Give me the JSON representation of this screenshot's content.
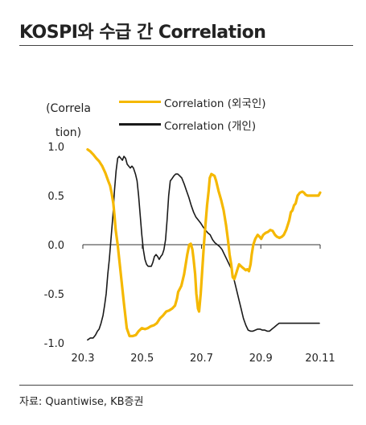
{
  "title": "KOSPI와 수급 간 Correlation",
  "source": "자료: Quantiwise, KB증권",
  "colors": {
    "foreign": "#F5B800",
    "individual": "#1a1a1a",
    "axis": "#333333"
  },
  "chart_data": {
    "type": "line",
    "title": "KOSPI와 수급 간 Correlation",
    "ylabel_lines": [
      "(Correla",
      "tion)"
    ],
    "xlabel": "",
    "ylim": [
      -1.0,
      1.0
    ],
    "xlim": [
      20.25,
      20.85
    ],
    "y_ticks": [
      "1.0",
      "0.5",
      "0.0",
      "-0.5",
      "-1.0"
    ],
    "y_tick_values": [
      1.0,
      0.5,
      0.0,
      -0.5,
      -1.0
    ],
    "x_ticks": [
      "20.3",
      "20.5",
      "20.7",
      "20.9",
      "20.11"
    ],
    "x_tick_values": [
      20.25,
      20.4,
      20.55,
      20.7,
      20.85
    ],
    "grid": false,
    "legend": "top",
    "series": [
      {
        "name": "Correlation (외국인)",
        "color": "#F5B800",
        "x": [
          20.262,
          20.269,
          20.276,
          20.284,
          20.291,
          20.299,
          20.307,
          20.314,
          20.319,
          20.323,
          20.327,
          20.33,
          20.333,
          20.338,
          20.346,
          20.354,
          20.361,
          20.368,
          20.376,
          20.384,
          20.391,
          20.399,
          20.407,
          20.414,
          20.422,
          20.43,
          20.437,
          20.445,
          20.453,
          20.461,
          20.468,
          20.476,
          20.483,
          20.488,
          20.491,
          20.495,
          20.499,
          20.506,
          20.514,
          20.519,
          20.523,
          20.527,
          20.53,
          20.534,
          20.537,
          20.541,
          20.544,
          20.548,
          20.552,
          20.556,
          20.56,
          20.564,
          20.568,
          20.571,
          20.575,
          20.579,
          20.583,
          20.587,
          20.593,
          20.6,
          20.606,
          20.612,
          20.617,
          20.621,
          20.625,
          20.629,
          20.633,
          20.637,
          20.641,
          20.645,
          20.65,
          20.656,
          20.662,
          20.666,
          20.67,
          20.674,
          20.677,
          20.681,
          20.686,
          20.692,
          20.697,
          20.701,
          20.706,
          20.712,
          20.718,
          20.724,
          20.73,
          20.736,
          20.741,
          20.747,
          20.753,
          20.758,
          20.764,
          20.768,
          20.772,
          20.776,
          20.78,
          20.784,
          20.788,
          20.793,
          20.799,
          20.805,
          20.809,
          20.813,
          20.818,
          20.822,
          20.826,
          20.83,
          20.834,
          20.838,
          20.842,
          20.846,
          20.85
        ],
        "values": [
          0.97,
          0.95,
          0.92,
          0.88,
          0.85,
          0.8,
          0.73,
          0.65,
          0.6,
          0.52,
          0.42,
          0.3,
          0.15,
          0.0,
          -0.3,
          -0.6,
          -0.85,
          -0.93,
          -0.93,
          -0.92,
          -0.88,
          -0.85,
          -0.86,
          -0.85,
          -0.83,
          -0.82,
          -0.8,
          -0.75,
          -0.72,
          -0.68,
          -0.67,
          -0.65,
          -0.62,
          -0.55,
          -0.48,
          -0.45,
          -0.42,
          -0.3,
          -0.1,
          0.0,
          0.01,
          -0.05,
          -0.15,
          -0.3,
          -0.5,
          -0.65,
          -0.68,
          -0.5,
          -0.25,
          0.0,
          0.2,
          0.4,
          0.55,
          0.68,
          0.72,
          0.71,
          0.7,
          0.65,
          0.55,
          0.45,
          0.35,
          0.2,
          0.05,
          -0.1,
          -0.2,
          -0.33,
          -0.35,
          -0.3,
          -0.25,
          -0.2,
          -0.22,
          -0.24,
          -0.26,
          -0.25,
          -0.27,
          -0.2,
          -0.1,
          0.0,
          0.06,
          0.1,
          0.08,
          0.06,
          0.1,
          0.12,
          0.13,
          0.15,
          0.14,
          0.1,
          0.08,
          0.07,
          0.08,
          0.1,
          0.15,
          0.2,
          0.25,
          0.33,
          0.35,
          0.4,
          0.42,
          0.5,
          0.53,
          0.54,
          0.53,
          0.51,
          0.5,
          0.5,
          0.5,
          0.5,
          0.5,
          0.5,
          0.5,
          0.5,
          0.53
        ]
      },
      {
        "name": "Correlation (개인)",
        "color": "#1a1a1a",
        "x": [
          20.262,
          20.269,
          20.276,
          20.282,
          20.287,
          20.291,
          20.296,
          20.301,
          20.305,
          20.309,
          20.313,
          20.317,
          20.321,
          20.326,
          20.33,
          20.334,
          20.338,
          20.342,
          20.346,
          20.35,
          20.354,
          20.358,
          20.362,
          20.366,
          20.37,
          20.374,
          20.378,
          20.383,
          20.387,
          20.391,
          20.395,
          20.399,
          20.403,
          20.407,
          20.411,
          20.415,
          20.419,
          20.423,
          20.427,
          20.431,
          20.435,
          20.439,
          20.443,
          20.447,
          20.451,
          20.455,
          20.459,
          20.463,
          20.467,
          20.471,
          20.475,
          20.48,
          20.485,
          20.49,
          20.495,
          20.5,
          20.506,
          20.512,
          20.518,
          20.524,
          20.53,
          20.536,
          20.542,
          20.548,
          20.554,
          20.56,
          20.566,
          20.572,
          20.578,
          20.584,
          20.59,
          20.596,
          20.602,
          20.608,
          20.614,
          20.62,
          20.626,
          20.632,
          20.638,
          20.644,
          20.65,
          20.656,
          20.662,
          20.668,
          20.674,
          20.68,
          20.686,
          20.692,
          20.698,
          20.704,
          20.71,
          20.716,
          20.722,
          20.728,
          20.734,
          20.74,
          20.746,
          20.752,
          20.758,
          20.764,
          20.77,
          20.776,
          20.782,
          20.788,
          20.794,
          20.8,
          20.806,
          20.812,
          20.818,
          20.824,
          20.83,
          20.836,
          20.842,
          20.848
        ],
        "values": [
          -0.97,
          -0.95,
          -0.95,
          -0.92,
          -0.88,
          -0.86,
          -0.8,
          -0.72,
          -0.62,
          -0.5,
          -0.3,
          -0.15,
          0.05,
          0.3,
          0.55,
          0.75,
          0.88,
          0.9,
          0.88,
          0.86,
          0.9,
          0.88,
          0.82,
          0.8,
          0.78,
          0.8,
          0.78,
          0.72,
          0.65,
          0.5,
          0.3,
          0.1,
          -0.05,
          -0.15,
          -0.2,
          -0.22,
          -0.22,
          -0.22,
          -0.18,
          -0.12,
          -0.1,
          -0.12,
          -0.15,
          -0.12,
          -0.1,
          -0.05,
          0.05,
          0.25,
          0.5,
          0.65,
          0.67,
          0.7,
          0.72,
          0.72,
          0.7,
          0.68,
          0.62,
          0.55,
          0.48,
          0.4,
          0.33,
          0.28,
          0.25,
          0.22,
          0.18,
          0.15,
          0.12,
          0.1,
          0.05,
          0.02,
          0.0,
          -0.02,
          -0.05,
          -0.1,
          -0.15,
          -0.2,
          -0.25,
          -0.35,
          -0.45,
          -0.55,
          -0.65,
          -0.75,
          -0.82,
          -0.87,
          -0.88,
          -0.88,
          -0.87,
          -0.86,
          -0.86,
          -0.87,
          -0.87,
          -0.88,
          -0.88,
          -0.86,
          -0.84,
          -0.82,
          -0.8,
          -0.8,
          -0.8,
          -0.8,
          -0.8,
          -0.8,
          -0.8,
          -0.8,
          -0.8,
          -0.8,
          -0.8,
          -0.8,
          -0.8,
          -0.8,
          -0.8,
          -0.8,
          -0.8,
          -0.8
        ]
      }
    ]
  }
}
